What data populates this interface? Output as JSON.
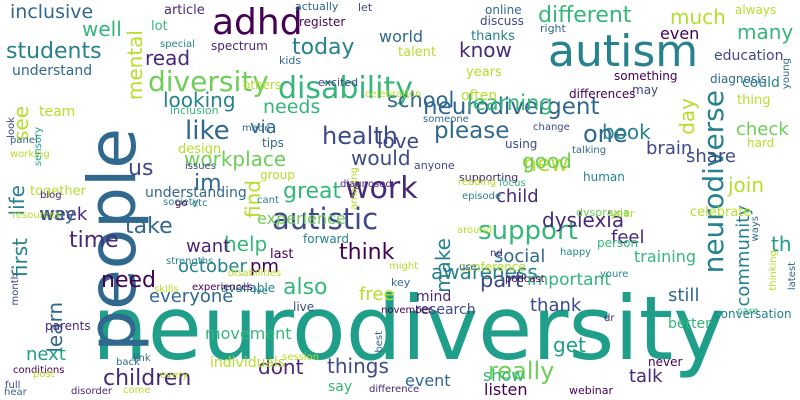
{
  "colors": {
    "background": "#ffffff",
    "palette": [
      "#440154",
      "#482878",
      "#3e4989",
      "#31688e",
      "#26828e",
      "#1f9e89",
      "#35b779",
      "#6ece58",
      "#b5de2b",
      "#fde725"
    ]
  },
  "words": [
    {
      "text": "neurodiversity",
      "color": "#1f9e89"
    },
    {
      "text": "people",
      "color": "#31688e"
    },
    {
      "text": "autism",
      "color": "#26828e"
    },
    {
      "text": "adhd",
      "color": "#440154"
    },
    {
      "text": "autistic",
      "color": "#3e4989"
    },
    {
      "text": "work",
      "color": "#482878"
    },
    {
      "text": "disability",
      "color": "#35b779"
    },
    {
      "text": "diversity",
      "color": "#6ece58"
    },
    {
      "text": "like",
      "color": "#31688e"
    },
    {
      "text": "neurodivergent",
      "color": "#31688e"
    },
    {
      "text": "neurodiverse",
      "color": "#26828e"
    },
    {
      "text": "please",
      "color": "#31688e"
    },
    {
      "text": "health",
      "color": "#3e4989"
    },
    {
      "text": "support",
      "color": "#35b779"
    },
    {
      "text": "dyslexia",
      "color": "#482878"
    },
    {
      "text": "students",
      "color": "#26828e"
    },
    {
      "text": "different",
      "color": "#35b779"
    },
    {
      "text": "school",
      "color": "#31688e"
    },
    {
      "text": "today",
      "color": "#26828e"
    },
    {
      "text": "learning",
      "color": "#35b779"
    },
    {
      "text": "workplace",
      "color": "#6ece58"
    },
    {
      "text": "one",
      "color": "#31688e"
    },
    {
      "text": "children",
      "color": "#482878"
    },
    {
      "text": "mental",
      "color": "#b5de2b"
    },
    {
      "text": "us",
      "color": "#3e4989"
    },
    {
      "text": "im",
      "color": "#31688e"
    },
    {
      "text": "think",
      "color": "#440154"
    },
    {
      "text": "really",
      "color": "#6ece58"
    },
    {
      "text": "things",
      "color": "#3e4989"
    },
    {
      "text": "dont",
      "color": "#482878"
    },
    {
      "text": "great",
      "color": "#35b779"
    },
    {
      "text": "time",
      "color": "#482878"
    },
    {
      "text": "take",
      "color": "#31688e"
    },
    {
      "text": "help",
      "color": "#35b779"
    },
    {
      "text": "need",
      "color": "#440154"
    },
    {
      "text": "also",
      "color": "#35b779"
    },
    {
      "text": "make",
      "color": "#26828e"
    },
    {
      "text": "part",
      "color": "#3e4989"
    },
    {
      "text": "new",
      "color": "#b5de2b"
    },
    {
      "text": "book",
      "color": "#26828e"
    },
    {
      "text": "join",
      "color": "#b5de2b"
    },
    {
      "text": "awareness",
      "color": "#26828e"
    },
    {
      "text": "would",
      "color": "#3e4989"
    },
    {
      "text": "good",
      "color": "#6ece58"
    },
    {
      "text": "first",
      "color": "#26828e"
    },
    {
      "text": "life",
      "color": "#26828e"
    },
    {
      "text": "learn",
      "color": "#31688e"
    },
    {
      "text": "find",
      "color": "#b5de2b"
    },
    {
      "text": "know",
      "color": "#482878"
    },
    {
      "text": "much",
      "color": "#b5de2b"
    },
    {
      "text": "many",
      "color": "#35b779"
    },
    {
      "text": "read",
      "color": "#482878"
    },
    {
      "text": "well",
      "color": "#35b779"
    },
    {
      "text": "inclusive",
      "color": "#31688e"
    },
    {
      "text": "world",
      "color": "#31688e"
    },
    {
      "text": "needs",
      "color": "#35b779"
    },
    {
      "text": "love",
      "color": "#3e4989"
    },
    {
      "text": "looking",
      "color": "#26828e"
    },
    {
      "text": "see",
      "color": "#b5de2b"
    },
    {
      "text": "via",
      "color": "#31688e"
    },
    {
      "text": "week",
      "color": "#482878"
    },
    {
      "text": "way",
      "color": "#31688e"
    },
    {
      "text": "want",
      "color": "#482878"
    },
    {
      "text": "october",
      "color": "#26828e"
    },
    {
      "text": "everyone",
      "color": "#31688e"
    },
    {
      "text": "pm",
      "color": "#440154"
    },
    {
      "text": "experience",
      "color": "#6ece58"
    },
    {
      "text": "social",
      "color": "#31688e"
    },
    {
      "text": "important",
      "color": "#35b779"
    },
    {
      "text": "thank",
      "color": "#3e4989"
    },
    {
      "text": "talk",
      "color": "#482878"
    },
    {
      "text": "get",
      "color": "#1f9e89"
    },
    {
      "text": "next",
      "color": "#1f9e89"
    },
    {
      "text": "child",
      "color": "#482878"
    },
    {
      "text": "share",
      "color": "#3e4989"
    },
    {
      "text": "brain",
      "color": "#3e4989"
    },
    {
      "text": "check",
      "color": "#6ece58"
    },
    {
      "text": "day",
      "color": "#b5de2b"
    },
    {
      "text": "th",
      "color": "#1f9e89"
    },
    {
      "text": "community",
      "color": "#26828e"
    },
    {
      "text": "feel",
      "color": "#482878"
    },
    {
      "text": "free",
      "color": "#b5de2b"
    },
    {
      "text": "still",
      "color": "#31688e"
    },
    {
      "text": "event",
      "color": "#31688e"
    },
    {
      "text": "show",
      "color": "#35b779"
    },
    {
      "text": "education",
      "color": "#3e4989"
    },
    {
      "text": "even",
      "color": "#440154"
    },
    {
      "text": "often",
      "color": "#b5de2b"
    },
    {
      "text": "understanding",
      "color": "#31688e"
    },
    {
      "text": "training",
      "color": "#35b779"
    },
    {
      "text": "research",
      "color": "#3e4989"
    },
    {
      "text": "better",
      "color": "#35b779"
    },
    {
      "text": "individuals",
      "color": "#b5de2b"
    },
    {
      "text": "movement",
      "color": "#35b779"
    },
    {
      "text": "mind",
      "color": "#482878"
    },
    {
      "text": "listen",
      "color": "#440154"
    },
    {
      "text": "say",
      "color": "#35b779"
    },
    {
      "text": "article",
      "color": "#482878"
    },
    {
      "text": "lot",
      "color": "#35b779"
    },
    {
      "text": "spectrum",
      "color": "#482878"
    },
    {
      "text": "register",
      "color": "#440154"
    },
    {
      "text": "online",
      "color": "#31688e"
    },
    {
      "text": "discuss",
      "color": "#3e4989"
    },
    {
      "text": "right",
      "color": "#31688e"
    },
    {
      "text": "always",
      "color": "#b5de2b"
    },
    {
      "text": "actually",
      "color": "#31688e"
    },
    {
      "text": "let",
      "color": "#3e4989"
    },
    {
      "text": "thanks",
      "color": "#26828e"
    },
    {
      "text": "talent",
      "color": "#b5de2b"
    },
    {
      "text": "years",
      "color": "#b5de2b"
    },
    {
      "text": "kids",
      "color": "#31688e"
    },
    {
      "text": "others",
      "color": "#b5de2b"
    },
    {
      "text": "excited",
      "color": "#3e4989"
    },
    {
      "text": "celebration",
      "color": "#b5de2b"
    },
    {
      "text": "something",
      "color": "#440154"
    },
    {
      "text": "diagnosis",
      "color": "#31688e"
    },
    {
      "text": "differences",
      "color": "#440154"
    },
    {
      "text": "may",
      "color": "#3e4989"
    },
    {
      "text": "could",
      "color": "#26828e"
    },
    {
      "text": "thing",
      "color": "#b5de2b"
    },
    {
      "text": "young",
      "color": "#31688e"
    },
    {
      "text": "understand",
      "color": "#31688e"
    },
    {
      "text": "special",
      "color": "#26828e"
    },
    {
      "text": "team",
      "color": "#b5de2b"
    },
    {
      "text": "look",
      "color": "#3e4989"
    },
    {
      "text": "working",
      "color": "#b5de2b"
    },
    {
      "text": "panel",
      "color": "#31688e"
    },
    {
      "text": "sensory",
      "color": "#1f9e89"
    },
    {
      "text": "inclusion",
      "color": "#35b779"
    },
    {
      "text": "someone",
      "color": "#31688e"
    },
    {
      "text": "made",
      "color": "#31688e"
    },
    {
      "text": "tips",
      "color": "#31688e"
    },
    {
      "text": "design",
      "color": "#b5de2b"
    },
    {
      "text": "change",
      "color": "#3e4989"
    },
    {
      "text": "hard",
      "color": "#b5de2b"
    },
    {
      "text": "talking",
      "color": "#31688e"
    },
    {
      "text": "using",
      "color": "#3e4989"
    },
    {
      "text": "anyone",
      "color": "#3e4989"
    },
    {
      "text": "supporting",
      "color": "#482878"
    },
    {
      "text": "human",
      "color": "#26828e"
    },
    {
      "text": "issues",
      "color": "#3e4989"
    },
    {
      "text": "group",
      "color": "#b5de2b"
    },
    {
      "text": "amazing",
      "color": "#b5de2b"
    },
    {
      "text": "diagnosed",
      "color": "#482878"
    },
    {
      "text": "reading",
      "color": "#b5de2b"
    },
    {
      "text": "focus",
      "color": "#35b779"
    },
    {
      "text": "together",
      "color": "#b5de2b"
    },
    {
      "text": "blog",
      "color": "#482878"
    },
    {
      "text": "society",
      "color": "#26828e"
    },
    {
      "text": "go",
      "color": "#440154"
    },
    {
      "text": "etc",
      "color": "#26828e"
    },
    {
      "text": "cant",
      "color": "#26828e"
    },
    {
      "text": "episode",
      "color": "#26828e"
    },
    {
      "text": "dyspraxia",
      "color": "#6ece58"
    },
    {
      "text": "year",
      "color": "#b5de2b"
    },
    {
      "text": "celebrate",
      "color": "#b5de2b"
    },
    {
      "text": "ways",
      "color": "#31688e"
    },
    {
      "text": "resources",
      "color": "#b5de2b"
    },
    {
      "text": "forward",
      "color": "#26828e"
    },
    {
      "text": "around",
      "color": "#b5de2b"
    },
    {
      "text": "person",
      "color": "#35b779"
    },
    {
      "text": "nd",
      "color": "#482878"
    },
    {
      "text": "happy",
      "color": "#26828e"
    },
    {
      "text": "thinking",
      "color": "#b5de2b"
    },
    {
      "text": "strengths",
      "color": "#26828e"
    },
    {
      "text": "last",
      "color": "#440154"
    },
    {
      "text": "month",
      "color": "#3e4989"
    },
    {
      "text": "conference",
      "color": "#b5de2b"
    },
    {
      "text": "use",
      "color": "#31688e"
    },
    {
      "text": "podcast",
      "color": "#440154"
    },
    {
      "text": "youre",
      "color": "#26828e"
    },
    {
      "text": "skills",
      "color": "#b5de2b"
    },
    {
      "text": "available",
      "color": "#26828e"
    },
    {
      "text": "key",
      "color": "#31688e"
    },
    {
      "text": "might",
      "color": "#b5de2b"
    },
    {
      "text": "ive",
      "color": "#26828e"
    },
    {
      "text": "parents",
      "color": "#482878"
    },
    {
      "text": "experiences",
      "color": "#440154"
    },
    {
      "text": "live",
      "color": "#3e4989"
    },
    {
      "text": "november",
      "color": "#440154"
    },
    {
      "text": "best",
      "color": "#31688e"
    },
    {
      "text": "dr",
      "color": "#482878"
    },
    {
      "text": "care",
      "color": "#35b779"
    },
    {
      "text": "latest",
      "color": "#31688e"
    },
    {
      "text": "conversation",
      "color": "#26828e"
    },
    {
      "text": "back",
      "color": "#31688e"
    },
    {
      "text": "link",
      "color": "#31688e"
    },
    {
      "text": "every",
      "color": "#b5de2b"
    },
    {
      "text": "session",
      "color": "#b5de2b"
    },
    {
      "text": "never",
      "color": "#440154"
    },
    {
      "text": "conditions",
      "color": "#440154"
    },
    {
      "text": "post",
      "color": "#b5de2b"
    },
    {
      "text": "full",
      "color": "#3e4989"
    },
    {
      "text": "hear",
      "color": "#31688e"
    },
    {
      "text": "disorder",
      "color": "#482878"
    },
    {
      "text": "come",
      "color": "#b5de2b"
    },
    {
      "text": "difference",
      "color": "#482878"
    },
    {
      "text": "webinar",
      "color": "#440154"
    },
    {
      "text": "disabilities",
      "color": "#b5de2b"
    },
    {
      "text": "going",
      "color": "#3e4989"
    }
  ]
}
